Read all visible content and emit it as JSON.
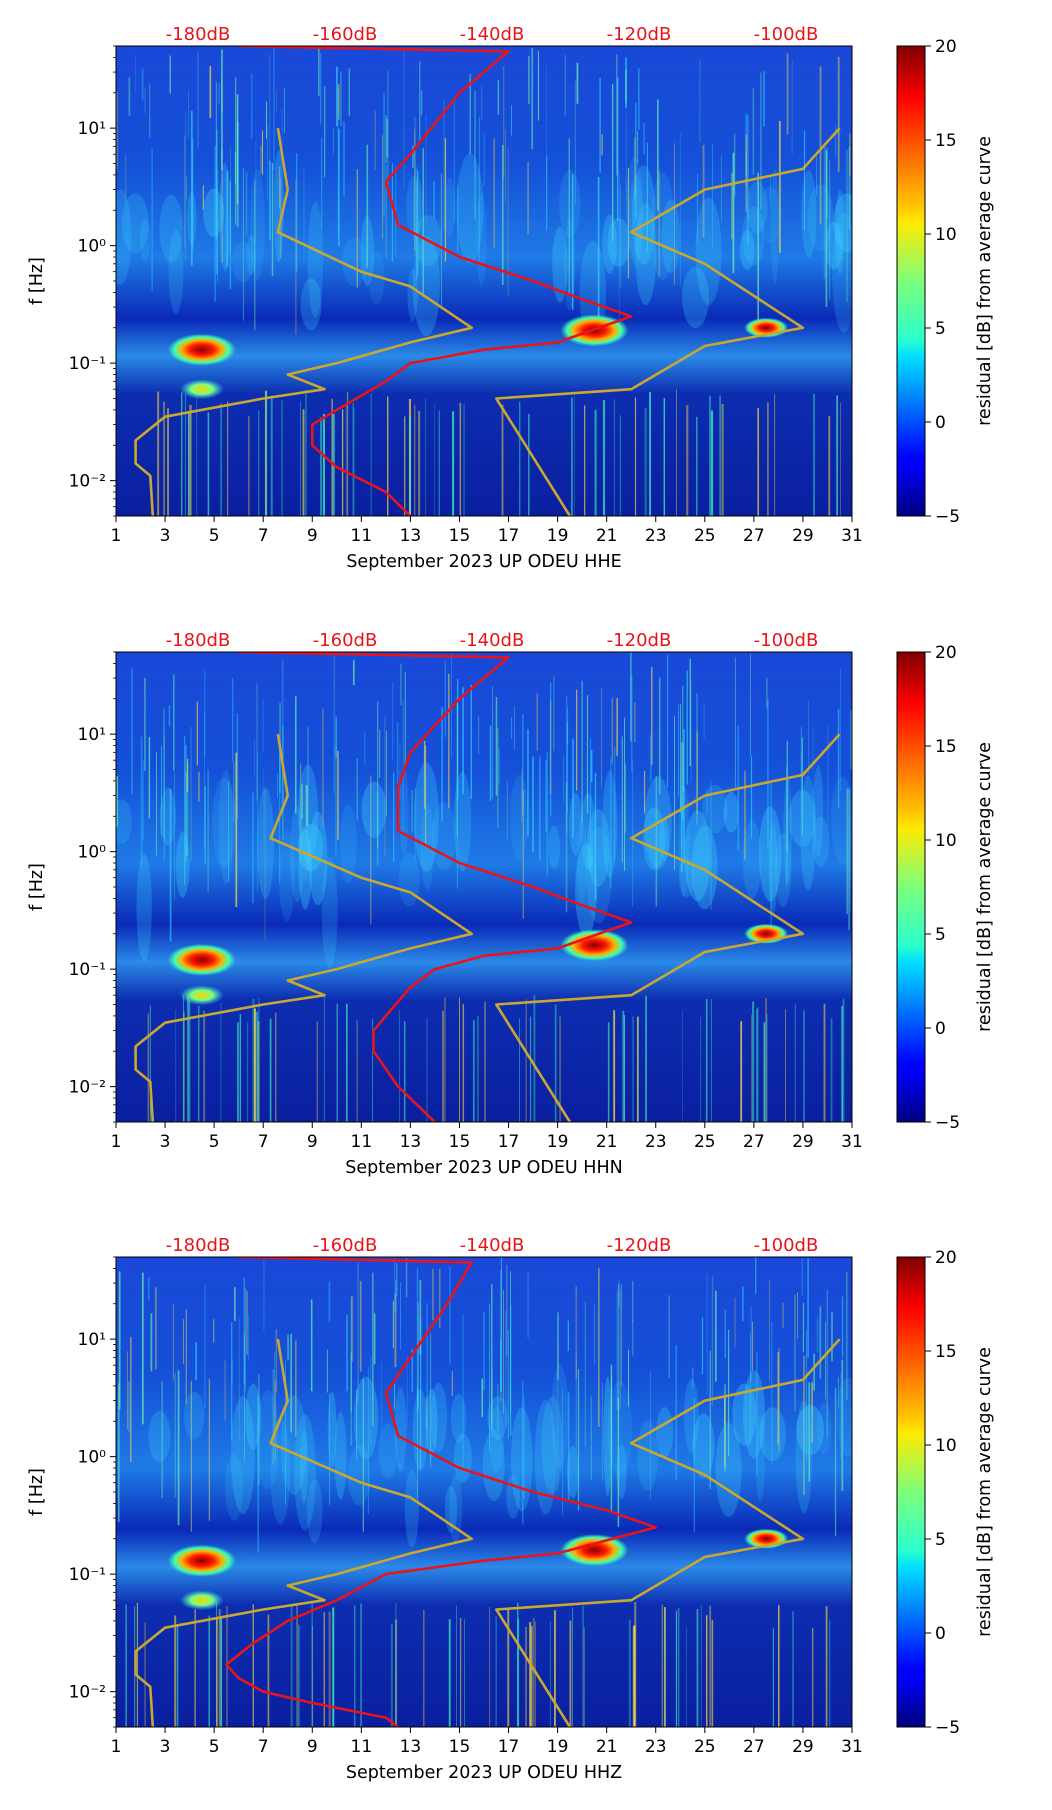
{
  "chart_data": [
    {
      "type": "heatmap",
      "xlabel": "September 2023 UP ODEU  HHE",
      "ylabel": "f [Hz]",
      "x_ticks": [
        "1",
        "3",
        "5",
        "7",
        "9",
        "11",
        "13",
        "15",
        "17",
        "19",
        "21",
        "23",
        "25",
        "27",
        "29",
        "31"
      ],
      "xlim": [
        1,
        31
      ],
      "y_ticks": [
        "10⁻²",
        "10⁻¹",
        "10⁰",
        "10¹"
      ],
      "ylim": [
        0.005,
        50
      ],
      "y_scale": "log",
      "top_ticks": [
        "-180dB",
        "-160dB",
        "-140dB",
        "-120dB",
        "-100dB"
      ],
      "colorbar": {
        "label": "residual [dB] from average curve",
        "range": [
          -5,
          20
        ],
        "ticks": [
          "20",
          "15",
          "10",
          "5",
          "0",
          "−5"
        ]
      },
      "red_curve": [
        [
          6,
          50
        ],
        [
          17,
          45
        ],
        [
          15,
          20
        ],
        [
          13,
          6
        ],
        [
          12,
          3.5
        ],
        [
          12.5,
          1.5
        ],
        [
          15,
          0.8
        ],
        [
          18,
          0.5
        ],
        [
          20,
          0.35
        ],
        [
          22,
          0.25
        ],
        [
          19,
          0.15
        ],
        [
          16,
          0.13
        ],
        [
          13,
          0.1
        ],
        [
          12,
          0.07
        ],
        [
          10,
          0.04
        ],
        [
          9,
          0.03
        ],
        [
          9,
          0.02
        ],
        [
          10,
          0.013
        ],
        [
          12,
          0.008
        ],
        [
          13,
          0.005
        ]
      ],
      "yellow_curve": [
        [
          7.6,
          10
        ],
        [
          8,
          3
        ],
        [
          7.6,
          1.3
        ],
        [
          11,
          0.6
        ],
        [
          13,
          0.45
        ],
        [
          15.5,
          0.2
        ],
        [
          13,
          0.15
        ],
        [
          10,
          0.1
        ],
        [
          8,
          0.08
        ],
        [
          9.5,
          0.06
        ],
        [
          7,
          0.05
        ],
        [
          3,
          0.035
        ],
        [
          1.8,
          0.022
        ],
        [
          1.8,
          0.014
        ],
        [
          2.4,
          0.011
        ],
        [
          2.5,
          0.005
        ]
      ],
      "yellow_curve_2": [
        [
          30.5,
          10
        ],
        [
          29,
          4.5
        ],
        [
          25,
          3
        ],
        [
          22,
          1.3
        ],
        [
          25,
          0.7
        ],
        [
          29,
          0.2
        ],
        [
          25,
          0.14
        ],
        [
          22,
          0.06
        ],
        [
          16.5,
          0.05
        ],
        [
          19.5,
          0.005
        ]
      ],
      "hotspots": [
        [
          4.5,
          0.13
        ],
        [
          20.5,
          0.19
        ],
        [
          27.5,
          0.2
        ],
        [
          4.5,
          0.06
        ]
      ]
    },
    {
      "type": "heatmap",
      "xlabel": "September 2023 UP ODEU  HHN",
      "ylabel": "f [Hz]",
      "x_ticks": [
        "1",
        "3",
        "5",
        "7",
        "9",
        "11",
        "13",
        "15",
        "17",
        "19",
        "21",
        "23",
        "25",
        "27",
        "29",
        "31"
      ],
      "xlim": [
        1,
        31
      ],
      "y_ticks": [
        "10⁻²",
        "10⁻¹",
        "10⁰",
        "10¹"
      ],
      "ylim": [
        0.005,
        50
      ],
      "y_scale": "log",
      "top_ticks": [
        "-180dB",
        "-160dB",
        "-140dB",
        "-120dB",
        "-100dB"
      ],
      "colorbar": {
        "label": "residual [dB] from average curve",
        "range": [
          -5,
          20
        ],
        "ticks": [
          "20",
          "15",
          "10",
          "5",
          "0",
          "−5"
        ]
      },
      "red_curve": [
        [
          6,
          50
        ],
        [
          17,
          45
        ],
        [
          15,
          20
        ],
        [
          13,
          7
        ],
        [
          12.5,
          3.5
        ],
        [
          12.5,
          1.5
        ],
        [
          15,
          0.8
        ],
        [
          18,
          0.5
        ],
        [
          20,
          0.35
        ],
        [
          22,
          0.25
        ],
        [
          19,
          0.15
        ],
        [
          16,
          0.13
        ],
        [
          14,
          0.1
        ],
        [
          13,
          0.07
        ],
        [
          12,
          0.04
        ],
        [
          11.5,
          0.03
        ],
        [
          11.5,
          0.02
        ],
        [
          12.5,
          0.01
        ],
        [
          14,
          0.005
        ]
      ],
      "yellow_curve": [
        [
          7.6,
          10
        ],
        [
          8,
          3
        ],
        [
          7.3,
          1.3
        ],
        [
          11,
          0.6
        ],
        [
          13,
          0.45
        ],
        [
          15.5,
          0.2
        ],
        [
          13,
          0.15
        ],
        [
          10,
          0.1
        ],
        [
          8,
          0.08
        ],
        [
          9.5,
          0.06
        ],
        [
          7,
          0.05
        ],
        [
          3,
          0.035
        ],
        [
          1.8,
          0.022
        ],
        [
          1.8,
          0.014
        ],
        [
          2.4,
          0.011
        ],
        [
          2.5,
          0.005
        ]
      ],
      "yellow_curve_2": [
        [
          30.5,
          10
        ],
        [
          29,
          4.5
        ],
        [
          25,
          3
        ],
        [
          22,
          1.3
        ],
        [
          25,
          0.7
        ],
        [
          29,
          0.2
        ],
        [
          25,
          0.14
        ],
        [
          22,
          0.06
        ],
        [
          16.5,
          0.05
        ],
        [
          19.5,
          0.005
        ]
      ],
      "hotspots": [
        [
          4.5,
          0.12
        ],
        [
          20.5,
          0.16
        ],
        [
          27.5,
          0.2
        ],
        [
          4.5,
          0.06
        ]
      ]
    },
    {
      "type": "heatmap",
      "xlabel": "September 2023 UP ODEU  HHZ",
      "ylabel": "f [Hz]",
      "x_ticks": [
        "1",
        "3",
        "5",
        "7",
        "9",
        "11",
        "13",
        "15",
        "17",
        "19",
        "21",
        "23",
        "25",
        "27",
        "29",
        "31"
      ],
      "xlim": [
        1,
        31
      ],
      "y_ticks": [
        "10⁻²",
        "10⁻¹",
        "10⁰",
        "10¹"
      ],
      "ylim": [
        0.005,
        50
      ],
      "y_scale": "log",
      "top_ticks": [
        "-180dB",
        "-160dB",
        "-140dB",
        "-120dB",
        "-100dB"
      ],
      "colorbar": {
        "label": "residual [dB] from average curve",
        "range": [
          -5,
          20
        ],
        "ticks": [
          "20",
          "15",
          "10",
          "5",
          "0",
          "−5"
        ]
      },
      "red_curve": [
        [
          6,
          50
        ],
        [
          15.5,
          45
        ],
        [
          14.5,
          20
        ],
        [
          13,
          7
        ],
        [
          12,
          3.5
        ],
        [
          12.5,
          1.5
        ],
        [
          15,
          0.8
        ],
        [
          18,
          0.5
        ],
        [
          21,
          0.35
        ],
        [
          23,
          0.25
        ],
        [
          19,
          0.15
        ],
        [
          16,
          0.13
        ],
        [
          12,
          0.1
        ],
        [
          10,
          0.06
        ],
        [
          8,
          0.04
        ],
        [
          6.5,
          0.025
        ],
        [
          5.5,
          0.017
        ],
        [
          6,
          0.013
        ],
        [
          7,
          0.01
        ],
        [
          9,
          0.008
        ],
        [
          12,
          0.006
        ],
        [
          12.5,
          0.005
        ]
      ],
      "yellow_curve": [
        [
          7.6,
          10
        ],
        [
          8,
          3
        ],
        [
          7.3,
          1.3
        ],
        [
          11,
          0.6
        ],
        [
          13,
          0.45
        ],
        [
          15.5,
          0.2
        ],
        [
          13,
          0.15
        ],
        [
          10,
          0.1
        ],
        [
          8,
          0.08
        ],
        [
          9.5,
          0.06
        ],
        [
          7,
          0.05
        ],
        [
          3,
          0.035
        ],
        [
          1.8,
          0.022
        ],
        [
          1.8,
          0.014
        ],
        [
          2.4,
          0.011
        ],
        [
          2.5,
          0.005
        ]
      ],
      "yellow_curve_2": [
        [
          30.5,
          10
        ],
        [
          29,
          4.5
        ],
        [
          25,
          3
        ],
        [
          22,
          1.3
        ],
        [
          25,
          0.7
        ],
        [
          29,
          0.2
        ],
        [
          25,
          0.14
        ],
        [
          22,
          0.06
        ],
        [
          16.5,
          0.05
        ],
        [
          19.5,
          0.005
        ]
      ],
      "hotspots": [
        [
          4.5,
          0.13
        ],
        [
          20.5,
          0.16
        ],
        [
          27.5,
          0.2
        ],
        [
          4.5,
          0.06
        ]
      ]
    }
  ]
}
